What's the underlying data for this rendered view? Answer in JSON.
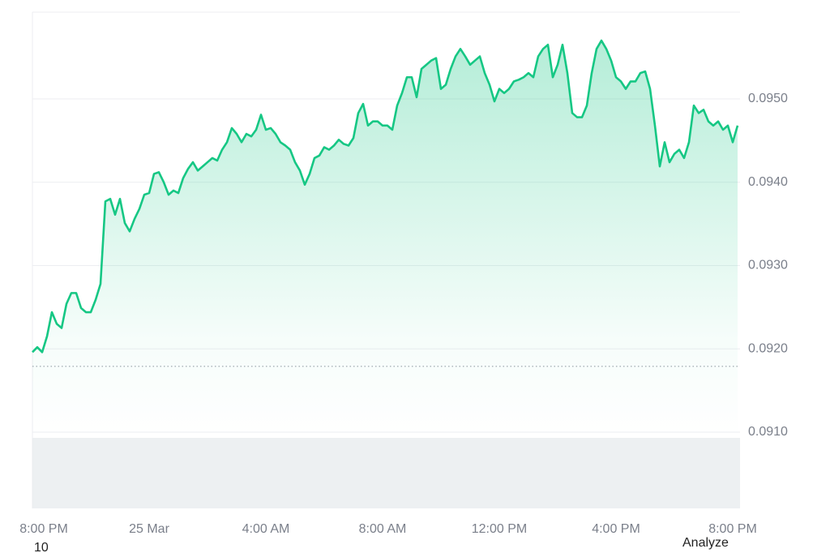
{
  "chart_data": {
    "type": "line",
    "categories": [
      "8:00 PM",
      null,
      null,
      null,
      null,
      null,
      null,
      null,
      null,
      null,
      null,
      null,
      null,
      null,
      null,
      null,
      null,
      null,
      null,
      null,
      null,
      null,
      null,
      null,
      "25 Mar",
      null,
      null,
      null,
      null,
      null,
      null,
      null,
      null,
      null,
      null,
      null,
      null,
      null,
      null,
      null,
      null,
      null,
      null,
      null,
      null,
      null,
      null,
      null,
      "4:00 AM",
      null,
      null,
      null,
      null,
      null,
      null,
      null,
      null,
      null,
      null,
      null,
      null,
      null,
      null,
      null,
      null,
      null,
      null,
      null,
      null,
      null,
      null,
      null,
      "8:00 AM",
      null,
      null,
      null,
      null,
      null,
      null,
      null,
      null,
      null,
      null,
      null,
      null,
      null,
      null,
      null,
      null,
      null,
      null,
      null,
      null,
      null,
      null,
      null,
      "12:00 PM",
      null,
      null,
      null,
      null,
      null,
      null,
      null,
      null,
      null,
      null,
      null,
      null,
      null,
      null,
      null,
      null,
      null,
      null,
      null,
      null,
      null,
      null,
      null,
      "4:00 PM",
      null,
      null,
      null,
      null,
      null,
      null,
      null,
      null,
      null,
      null,
      null,
      null,
      null,
      null,
      null,
      null,
      null,
      null,
      null,
      null,
      null,
      null,
      null,
      "8:00 PM",
      null
    ],
    "values": [
      0.09196,
      0.09202,
      0.09196,
      0.09215,
      0.09244,
      0.0923,
      0.09225,
      0.09254,
      0.09267,
      0.09267,
      0.09249,
      0.09244,
      0.09244,
      0.09259,
      0.09278,
      0.09377,
      0.0938,
      0.09361,
      0.0938,
      0.09351,
      0.09341,
      0.09356,
      0.09368,
      0.09385,
      0.09387,
      0.0941,
      0.09412,
      0.094,
      0.09385,
      0.0939,
      0.09387,
      0.09405,
      0.09416,
      0.09424,
      0.09414,
      0.09419,
      0.09424,
      0.09429,
      0.09426,
      0.09439,
      0.09448,
      0.09465,
      0.09458,
      0.09448,
      0.09458,
      0.09455,
      0.09463,
      0.09481,
      0.09463,
      0.09465,
      0.09458,
      0.09448,
      0.09444,
      0.09439,
      0.09424,
      0.09414,
      0.09397,
      0.0941,
      0.09429,
      0.09432,
      0.09442,
      0.09439,
      0.09444,
      0.09451,
      0.09446,
      0.09444,
      0.09453,
      0.09483,
      0.09494,
      0.09468,
      0.09473,
      0.09473,
      0.09468,
      0.09468,
      0.09463,
      0.09492,
      0.09507,
      0.09526,
      0.09526,
      0.09502,
      0.09536,
      0.09541,
      0.09546,
      0.09549,
      0.09512,
      0.09517,
      0.09536,
      0.09551,
      0.0956,
      0.09551,
      0.09541,
      0.09546,
      0.09551,
      0.09531,
      0.09517,
      0.09497,
      0.09512,
      0.09507,
      0.09512,
      0.09521,
      0.09523,
      0.09526,
      0.09531,
      0.09526,
      0.09551,
      0.0956,
      0.09565,
      0.09526,
      0.09541,
      0.09565,
      0.09531,
      0.09483,
      0.09478,
      0.09478,
      0.09492,
      0.09531,
      0.0956,
      0.0957,
      0.0956,
      0.09546,
      0.09526,
      0.09521,
      0.09512,
      0.09521,
      0.09521,
      0.09531,
      0.09533,
      0.09512,
      0.09468,
      0.09419,
      0.09448,
      0.09424,
      0.09434,
      0.09439,
      0.09429,
      0.09448,
      0.09492,
      0.09483,
      0.09487,
      0.09473,
      0.09468,
      0.09473,
      0.09463,
      0.09468,
      0.09448,
      0.09468
    ],
    "color": "#16c784",
    "reference_line": 0.09179,
    "ylim": [
      0.090085,
      0.096041
    ],
    "yticks": [
      {
        "value": 0.091,
        "label": "0.0910"
      },
      {
        "value": 0.092,
        "label": "0.0920"
      },
      {
        "value": 0.093,
        "label": "0.0930"
      },
      {
        "value": 0.094,
        "label": "0.0940"
      },
      {
        "value": 0.095,
        "label": "0.0950"
      }
    ],
    "grid": true
  },
  "footer": {
    "left": "10",
    "right": "Analyze"
  }
}
